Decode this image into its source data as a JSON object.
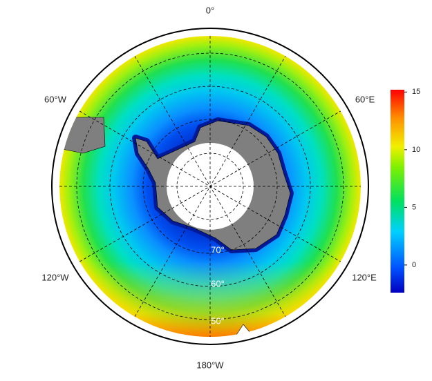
{
  "map": {
    "longitude_labels": [
      "0°",
      "60°E",
      "120°E",
      "180°W",
      "120°W",
      "60°W"
    ],
    "latitude_labels": [
      "70°",
      "60°",
      "50°"
    ]
  },
  "colorbar": {
    "lim": [
      -2.4,
      15.2
    ],
    "ticks": [
      0,
      5,
      10,
      15
    ]
  }
}
